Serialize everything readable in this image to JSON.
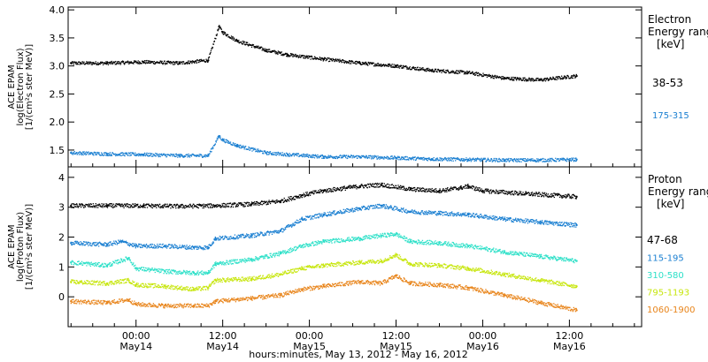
{
  "x_axis": {
    "title": "hours:minutes, May 13, 2012 - May 16, 2012",
    "ticks": [
      {
        "time": "00:00",
        "day": "May14",
        "h": 24
      },
      {
        "time": "12:00",
        "day": "May14",
        "h": 36
      },
      {
        "time": "00:00",
        "day": "May15",
        "h": 48
      },
      {
        "time": "12:00",
        "day": "May15",
        "h": 60
      },
      {
        "time": "00:00",
        "day": "May16",
        "h": 72
      },
      {
        "time": "12:00",
        "day": "May16",
        "h": 84
      }
    ]
  },
  "chart_data": [
    {
      "type": "scatter",
      "panel": "electron",
      "ylabel_lines": [
        "ACE EPAM",
        "log(Electron Flux)",
        "[1/(cm²s ster MeV)]"
      ],
      "ylim": [
        1.2,
        4.05
      ],
      "yticks": [
        "1.5",
        "2.0",
        "2.5",
        "3.0",
        "3.5",
        "4.0"
      ],
      "xlim_hours": [
        14.6,
        94
      ],
      "legend_title": [
        "Electron",
        "Energy range",
        "[keV]"
      ],
      "series": [
        {
          "name": "38-53",
          "color": "#000000",
          "x": [
            15,
            20,
            25,
            30,
            34,
            35.5,
            36,
            38,
            42,
            45,
            50,
            55,
            60,
            65,
            70,
            75,
            80,
            85
          ],
          "y": [
            3.05,
            3.05,
            3.07,
            3.05,
            3.1,
            3.7,
            3.6,
            3.45,
            3.28,
            3.2,
            3.12,
            3.05,
            3.0,
            2.92,
            2.88,
            2.78,
            2.75,
            2.82
          ]
        },
        {
          "name": "175-315",
          "color": "#1a7fd1",
          "x": [
            15,
            20,
            25,
            30,
            34,
            35.5,
            36,
            38,
            42,
            45,
            50,
            55,
            60,
            65,
            70,
            75,
            80,
            85
          ],
          "y": [
            1.45,
            1.43,
            1.42,
            1.4,
            1.4,
            1.75,
            1.68,
            1.58,
            1.45,
            1.42,
            1.38,
            1.38,
            1.36,
            1.34,
            1.33,
            1.32,
            1.32,
            1.33
          ]
        }
      ]
    },
    {
      "type": "scatter",
      "panel": "proton",
      "ylabel_lines": [
        "ACE EPAM",
        "log(Proton Flux)",
        "[1/(cm²s ster MeV)]"
      ],
      "ylim": [
        -1.0,
        4.35
      ],
      "yticks": [
        "0",
        "1",
        "2",
        "3",
        "4"
      ],
      "xlim_hours": [
        14.6,
        94
      ],
      "legend_title": [
        "Proton",
        "Energy range",
        "[keV]"
      ],
      "series": [
        {
          "name": "47-68",
          "color": "#000000",
          "x": [
            15,
            20,
            25,
            30,
            35,
            40,
            44,
            47,
            50,
            55,
            58,
            62,
            66,
            69,
            70,
            72,
            78,
            85
          ],
          "y": [
            3.05,
            3.05,
            3.05,
            3.03,
            3.05,
            3.1,
            3.2,
            3.4,
            3.55,
            3.7,
            3.75,
            3.6,
            3.55,
            3.65,
            3.7,
            3.55,
            3.45,
            3.35
          ]
        },
        {
          "name": "115-195",
          "color": "#1a7fd1",
          "x": [
            15,
            20,
            22,
            24,
            28,
            32,
            34,
            35,
            40,
            44,
            47,
            50,
            55,
            58,
            62,
            66,
            70,
            75,
            80,
            85
          ],
          "y": [
            1.8,
            1.75,
            1.85,
            1.7,
            1.7,
            1.65,
            1.65,
            1.95,
            2.05,
            2.2,
            2.6,
            2.75,
            2.95,
            3.05,
            2.85,
            2.8,
            2.75,
            2.6,
            2.5,
            2.4
          ]
        },
        {
          "name": "310-580",
          "color": "#2de0c8",
          "x": [
            15,
            20,
            23,
            24,
            28,
            32,
            34,
            35,
            40,
            44,
            47,
            50,
            55,
            58,
            60,
            62,
            66,
            70,
            75,
            80,
            85
          ],
          "y": [
            1.15,
            1.05,
            1.3,
            0.95,
            0.85,
            0.8,
            0.8,
            1.1,
            1.25,
            1.45,
            1.7,
            1.85,
            1.95,
            2.05,
            2.1,
            1.85,
            1.8,
            1.7,
            1.5,
            1.35,
            1.2
          ]
        },
        {
          "name": "795-1193",
          "color": "#c7e60d",
          "x": [
            15,
            20,
            23,
            24,
            28,
            32,
            34,
            35,
            40,
            44,
            47,
            50,
            55,
            58,
            60,
            62,
            66,
            70,
            75,
            80,
            85
          ],
          "y": [
            0.5,
            0.45,
            0.55,
            0.4,
            0.35,
            0.25,
            0.3,
            0.55,
            0.6,
            0.75,
            0.95,
            1.05,
            1.15,
            1.2,
            1.4,
            1.1,
            1.05,
            0.95,
            0.75,
            0.55,
            0.35
          ]
        },
        {
          "name": "1060-1900",
          "color": "#e8841a",
          "x": [
            15,
            20,
            23,
            24,
            28,
            32,
            34,
            35,
            40,
            44,
            47,
            50,
            55,
            58,
            60,
            62,
            66,
            70,
            75,
            80,
            85
          ],
          "y": [
            -0.15,
            -0.2,
            -0.1,
            -0.25,
            -0.3,
            -0.3,
            -0.3,
            -0.15,
            -0.05,
            0.05,
            0.25,
            0.35,
            0.5,
            0.45,
            0.7,
            0.45,
            0.4,
            0.3,
            0.05,
            -0.2,
            -0.45
          ]
        }
      ]
    }
  ]
}
